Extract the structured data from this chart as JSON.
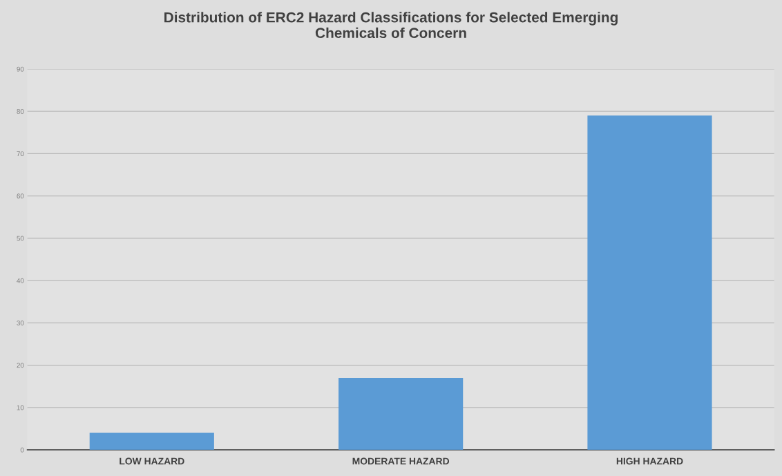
{
  "chart_data": {
    "type": "bar",
    "title": "Distribution of ERC2 Hazard Classifications for Selected Emerging\nChemicals of Concern",
    "categories": [
      "LOW HAZARD",
      "MODERATE HAZARD",
      "HIGH HAZARD"
    ],
    "values": [
      4,
      17,
      79
    ],
    "color": "#5b9bd5",
    "ylim": [
      0,
      90
    ],
    "yticks": [
      0,
      10,
      20,
      30,
      40,
      50,
      60,
      70,
      80,
      90
    ],
    "grid": "y"
  }
}
